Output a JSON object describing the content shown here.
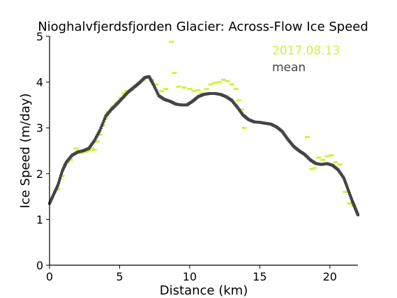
{
  "chart_data": {
    "type": "scatter",
    "title": "Nioghalvfjerdsfjorden Glacier: Across-Flow Ice Speed",
    "xlabel": "Distance (km)",
    "ylabel": "Ice Speed (m/day)",
    "xlim": [
      0,
      22
    ],
    "ylim": [
      0,
      5
    ],
    "xticks": [
      0,
      5,
      10,
      15,
      20
    ],
    "yticks": [
      0,
      1,
      2,
      3,
      4,
      5
    ],
    "grid": false,
    "legend_position": "top-right",
    "series": [
      {
        "name": "2017.08.13",
        "color": "#d4f03a",
        "style": "points",
        "points": [
          [
            0.6,
            1.66
          ],
          [
            0.9,
            1.95
          ],
          [
            1.1,
            2.2
          ],
          [
            1.3,
            2.25
          ],
          [
            1.5,
            2.3
          ],
          [
            1.9,
            2.55
          ],
          [
            2.1,
            2.5
          ],
          [
            2.3,
            2.45
          ],
          [
            2.6,
            2.48
          ],
          [
            2.8,
            2.5
          ],
          [
            3.0,
            2.55
          ],
          [
            3.2,
            2.52
          ],
          [
            3.4,
            2.7
          ],
          [
            3.6,
            2.85
          ],
          [
            3.8,
            3.05
          ],
          [
            4.0,
            3.2
          ],
          [
            4.2,
            3.35
          ],
          [
            4.5,
            3.45
          ],
          [
            4.8,
            3.55
          ],
          [
            5.1,
            3.65
          ],
          [
            5.3,
            3.75
          ],
          [
            5.5,
            3.8
          ],
          [
            5.8,
            3.82
          ],
          [
            6.1,
            3.9
          ],
          [
            6.4,
            4.0
          ],
          [
            6.7,
            4.05
          ],
          [
            7.3,
            4.05
          ],
          [
            7.6,
            3.95
          ],
          [
            8.0,
            3.8
          ],
          [
            8.3,
            3.85
          ],
          [
            8.7,
            4.88
          ],
          [
            8.9,
            4.2
          ],
          [
            9.2,
            3.9
          ],
          [
            9.6,
            3.88
          ],
          [
            10.0,
            3.85
          ],
          [
            10.3,
            3.8
          ],
          [
            10.6,
            3.82
          ],
          [
            10.9,
            3.75
          ],
          [
            11.2,
            3.85
          ],
          [
            11.5,
            3.95
          ],
          [
            11.8,
            3.98
          ],
          [
            12.1,
            4.0
          ],
          [
            12.4,
            4.05
          ],
          [
            12.7,
            4.02
          ],
          [
            13.0,
            3.95
          ],
          [
            13.3,
            3.85
          ],
          [
            13.5,
            3.6
          ],
          [
            13.7,
            3.4
          ],
          [
            13.9,
            3.0
          ],
          [
            14.1,
            3.2
          ],
          [
            18.4,
            2.8
          ],
          [
            18.7,
            2.1
          ],
          [
            18.9,
            2.12
          ],
          [
            19.2,
            2.35
          ],
          [
            19.5,
            2.3
          ],
          [
            19.8,
            2.38
          ],
          [
            20.1,
            2.4
          ],
          [
            20.4,
            2.25
          ],
          [
            20.7,
            2.2
          ],
          [
            21.1,
            1.6
          ],
          [
            21.4,
            1.35
          ],
          [
            21.7,
            1.3
          ]
        ]
      },
      {
        "name": "mean",
        "color": "#444444",
        "style": "dense-points",
        "points": [
          [
            0.0,
            1.35
          ],
          [
            0.3,
            1.55
          ],
          [
            0.6,
            1.75
          ],
          [
            0.9,
            2.05
          ],
          [
            1.2,
            2.25
          ],
          [
            1.6,
            2.4
          ],
          [
            2.0,
            2.47
          ],
          [
            2.4,
            2.5
          ],
          [
            2.8,
            2.55
          ],
          [
            3.2,
            2.72
          ],
          [
            3.6,
            2.95
          ],
          [
            4.0,
            3.25
          ],
          [
            4.4,
            3.4
          ],
          [
            4.8,
            3.52
          ],
          [
            5.2,
            3.65
          ],
          [
            5.6,
            3.78
          ],
          [
            6.0,
            3.88
          ],
          [
            6.4,
            3.98
          ],
          [
            6.8,
            4.1
          ],
          [
            7.1,
            4.12
          ],
          [
            7.4,
            3.95
          ],
          [
            7.8,
            3.7
          ],
          [
            8.2,
            3.62
          ],
          [
            8.6,
            3.58
          ],
          [
            9.0,
            3.52
          ],
          [
            9.4,
            3.5
          ],
          [
            9.8,
            3.5
          ],
          [
            10.2,
            3.58
          ],
          [
            10.6,
            3.68
          ],
          [
            11.0,
            3.73
          ],
          [
            11.4,
            3.75
          ],
          [
            11.8,
            3.75
          ],
          [
            12.2,
            3.73
          ],
          [
            12.6,
            3.68
          ],
          [
            13.0,
            3.6
          ],
          [
            13.4,
            3.45
          ],
          [
            13.8,
            3.28
          ],
          [
            14.2,
            3.18
          ],
          [
            14.6,
            3.13
          ],
          [
            15.0,
            3.12
          ],
          [
            15.4,
            3.1
          ],
          [
            15.8,
            3.08
          ],
          [
            16.2,
            3.02
          ],
          [
            16.6,
            2.92
          ],
          [
            17.0,
            2.75
          ],
          [
            17.4,
            2.6
          ],
          [
            17.8,
            2.5
          ],
          [
            18.2,
            2.42
          ],
          [
            18.6,
            2.3
          ],
          [
            19.0,
            2.22
          ],
          [
            19.4,
            2.2
          ],
          [
            19.8,
            2.22
          ],
          [
            20.2,
            2.18
          ],
          [
            20.6,
            2.08
          ],
          [
            21.0,
            1.9
          ],
          [
            21.3,
            1.65
          ],
          [
            21.6,
            1.4
          ],
          [
            21.8,
            1.25
          ],
          [
            22.0,
            1.1
          ]
        ]
      }
    ]
  }
}
